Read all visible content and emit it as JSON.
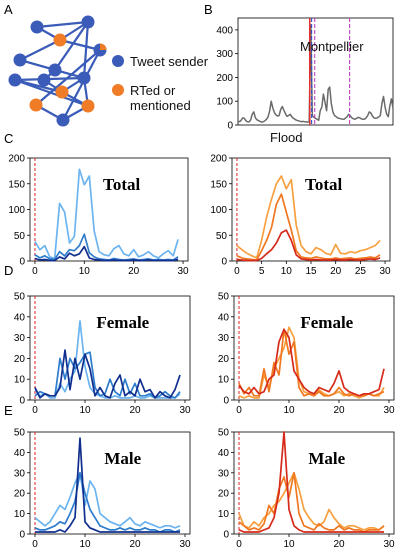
{
  "panel_letters": {
    "a": "A",
    "b": "B",
    "c": "C",
    "d": "D",
    "e": "E"
  },
  "legend": {
    "sender": {
      "label": "Tweet sender",
      "color": "#3a5cb8"
    },
    "rted": {
      "label_line1": "RTed or",
      "label_line2": "mentioned",
      "color": "#f07c28"
    }
  },
  "network": {
    "edge_color": "#3a5cb8",
    "nodes": [
      {
        "id": 1,
        "role": "sender"
      },
      {
        "id": 2,
        "role": "rted"
      },
      {
        "id": 3,
        "role": "sender"
      },
      {
        "id": 4,
        "role": "mixed"
      },
      {
        "id": 5,
        "role": "sender"
      },
      {
        "id": 6,
        "role": "sender"
      },
      {
        "id": 7,
        "role": "sender"
      },
      {
        "id": 8,
        "role": "sender"
      },
      {
        "id": 9,
        "role": "rted"
      },
      {
        "id": 10,
        "role": "sender"
      },
      {
        "id": 11,
        "role": "rted"
      },
      {
        "id": 12,
        "role": "sender"
      },
      {
        "id": 13,
        "role": "rted"
      }
    ],
    "edges": [
      [
        1,
        2
      ],
      [
        1,
        3
      ],
      [
        2,
        3
      ],
      [
        2,
        5
      ],
      [
        2,
        4
      ],
      [
        3,
        8
      ],
      [
        3,
        6
      ],
      [
        5,
        8
      ],
      [
        6,
        8
      ],
      [
        6,
        7
      ],
      [
        7,
        9
      ],
      [
        8,
        9
      ],
      [
        8,
        10
      ],
      [
        8,
        11
      ],
      [
        9,
        10
      ],
      [
        9,
        11
      ],
      [
        4,
        12
      ],
      [
        4,
        13
      ],
      [
        11,
        12
      ],
      [
        12,
        13
      ],
      [
        5,
        6
      ],
      [
        10,
        11
      ]
    ]
  },
  "chart_data": [
    {
      "panel": "B",
      "type": "line",
      "annotations": [
        "Montpellier",
        "Flood"
      ],
      "ylim": [
        0,
        450
      ],
      "yticks": [
        0,
        100,
        200,
        300,
        400
      ],
      "series": [
        {
          "color": "#6a6a6a",
          "values": [
            15,
            14,
            20,
            30,
            28,
            18,
            14,
            13,
            22,
            45,
            55,
            30,
            22,
            18,
            15,
            12,
            14,
            18,
            24,
            35,
            58,
            100,
            72,
            52,
            42,
            38,
            40,
            65,
            78,
            62,
            48,
            36,
            40,
            45,
            35,
            28,
            24,
            20,
            18,
            16,
            14,
            15,
            14,
            13,
            12,
            14,
            420,
            40,
            32,
            28,
            24,
            20,
            60,
            75,
            130,
            95,
            60,
            150,
            160,
            90,
            55,
            40,
            35,
            30,
            28,
            26,
            25,
            24,
            30,
            35,
            45,
            38,
            30,
            26,
            24,
            28,
            32,
            30,
            26,
            24,
            25,
            30,
            40,
            55,
            50,
            38,
            30,
            28,
            30,
            34,
            40,
            90,
            120,
            75,
            45,
            35,
            80,
            110,
            70
          ]
        }
      ],
      "markers": [
        {
          "pos": 0.463,
          "color": "#e03030"
        },
        {
          "pos": 0.475,
          "color": "#2850c8"
        },
        {
          "pos": 0.495,
          "color": "#c040c0"
        },
        {
          "pos": 0.72,
          "color": "#c040c0"
        }
      ]
    },
    {
      "panel": "C-left",
      "type": "line",
      "title": "Total",
      "xlim": [
        -1,
        31
      ],
      "ylim": [
        0,
        200
      ],
      "xticks": [
        0,
        10,
        20,
        30
      ],
      "yticks": [
        0,
        50,
        100,
        150,
        200
      ],
      "vline": 0,
      "x": [
        0,
        1,
        2,
        3,
        4,
        5,
        6,
        7,
        8,
        9,
        10,
        11,
        12,
        13,
        14,
        15,
        16,
        17,
        18,
        19,
        20,
        21,
        22,
        23,
        24,
        25,
        26,
        27,
        28,
        29
      ],
      "series": [
        {
          "color": "#6cb4f0",
          "values": [
            38,
            22,
            30,
            8,
            5,
            112,
            95,
            35,
            48,
            178,
            148,
            165,
            58,
            18,
            12,
            10,
            24,
            30,
            14,
            10,
            22,
            8,
            12,
            18,
            10,
            6,
            14,
            20,
            10,
            42
          ]
        },
        {
          "color": "#2f7dcd",
          "values": [
            12,
            6,
            10,
            4,
            3,
            18,
            10,
            22,
            20,
            30,
            52,
            16,
            8,
            4,
            3,
            2,
            5,
            3,
            2,
            3,
            4,
            2,
            3,
            4,
            2,
            3,
            2,
            3,
            2,
            8
          ]
        },
        {
          "color": "#102f8e",
          "values": [
            5,
            2,
            3,
            1,
            1,
            8,
            4,
            15,
            10,
            14,
            28,
            6,
            3,
            2,
            1,
            1,
            2,
            1,
            1,
            1,
            2,
            1,
            1,
            2,
            1,
            1,
            1,
            1,
            1,
            3
          ]
        }
      ]
    },
    {
      "panel": "C-right",
      "type": "line",
      "title": "Total",
      "xlim": [
        -1,
        31
      ],
      "ylim": [
        0,
        200
      ],
      "xticks": [
        0,
        5,
        10,
        15,
        20,
        25,
        30
      ],
      "yticks": [
        0,
        50,
        100,
        150,
        200
      ],
      "vline": 0,
      "x": [
        0,
        1,
        2,
        3,
        4,
        5,
        6,
        7,
        8,
        9,
        10,
        11,
        12,
        13,
        14,
        15,
        16,
        17,
        18,
        19,
        20,
        21,
        22,
        23,
        24,
        25,
        26,
        27,
        28,
        29
      ],
      "series": [
        {
          "color": "#f7a040",
          "values": [
            30,
            22,
            15,
            10,
            6,
            40,
            85,
            120,
            150,
            165,
            140,
            158,
            70,
            30,
            18,
            14,
            26,
            22,
            15,
            12,
            32,
            15,
            14,
            18,
            16,
            20,
            22,
            26,
            30,
            40
          ]
        },
        {
          "color": "#f07820",
          "values": [
            10,
            6,
            4,
            3,
            2,
            20,
            40,
            65,
            110,
            130,
            95,
            60,
            20,
            8,
            6,
            5,
            8,
            6,
            4,
            4,
            6,
            4,
            5,
            6,
            4,
            5,
            6,
            8,
            6,
            12
          ]
        },
        {
          "color": "#d62a1a",
          "values": [
            3,
            2,
            1,
            1,
            1,
            5,
            14,
            22,
            35,
            55,
            60,
            40,
            12,
            4,
            3,
            2,
            3,
            2,
            2,
            2,
            3,
            2,
            2,
            3,
            2,
            2,
            3,
            4,
            3,
            6
          ]
        }
      ]
    },
    {
      "panel": "D-left",
      "type": "line",
      "title": "Female",
      "xlim": [
        -1,
        31
      ],
      "ylim": [
        0,
        50
      ],
      "xticks": [
        0,
        10,
        20,
        30
      ],
      "yticks": [
        0,
        10,
        20,
        30,
        40,
        50
      ],
      "vline": 0,
      "x": [
        0,
        1,
        2,
        3,
        4,
        5,
        6,
        7,
        8,
        9,
        10,
        11,
        12,
        13,
        14,
        15,
        16,
        17,
        18,
        19,
        20,
        21,
        22,
        23,
        24,
        25,
        26,
        27,
        28,
        29
      ],
      "series": [
        {
          "color": "#6cb4f0",
          "values": [
            5,
            2,
            3,
            1,
            1,
            8,
            4,
            10,
            14,
            38,
            16,
            6,
            3,
            2,
            1,
            1,
            2,
            1,
            1,
            1,
            2,
            1,
            1,
            2,
            1,
            1,
            1,
            1,
            1,
            3
          ]
        },
        {
          "color": "#2f7dcd",
          "values": [
            2,
            4,
            3,
            2,
            2,
            20,
            10,
            20,
            15,
            18,
            22,
            23,
            6,
            2,
            3,
            10,
            4,
            2,
            10,
            3,
            8,
            2,
            2,
            3,
            1,
            2,
            4,
            2,
            1,
            4
          ]
        },
        {
          "color": "#102f8e",
          "values": [
            6,
            1,
            3,
            2,
            2,
            6,
            24,
            5,
            20,
            10,
            22,
            15,
            2,
            6,
            2,
            1,
            8,
            12,
            2,
            4,
            2,
            10,
            4,
            5,
            1,
            4,
            2,
            1,
            5,
            12
          ]
        }
      ]
    },
    {
      "panel": "D-right",
      "type": "line",
      "title": "Female",
      "xlim": [
        -1,
        31
      ],
      "ylim": [
        0,
        50
      ],
      "xticks": [
        0,
        10,
        20,
        30
      ],
      "yticks": [
        0,
        10,
        20,
        30,
        40,
        50
      ],
      "vline": 0,
      "x": [
        0,
        1,
        2,
        3,
        4,
        5,
        6,
        7,
        8,
        9,
        10,
        11,
        12,
        13,
        14,
        15,
        16,
        17,
        18,
        19,
        20,
        21,
        22,
        23,
        24,
        25,
        26,
        27,
        28,
        29
      ],
      "series": [
        {
          "color": "#f7a040",
          "values": [
            2,
            1,
            2,
            1,
            1,
            12,
            6,
            15,
            20,
            25,
            35,
            30,
            10,
            4,
            3,
            2,
            5,
            3,
            2,
            3,
            4,
            2,
            3,
            2,
            1,
            2,
            3,
            2,
            2,
            6
          ]
        },
        {
          "color": "#f07820",
          "values": [
            8,
            3,
            6,
            2,
            2,
            15,
            4,
            18,
            12,
            34,
            22,
            28,
            6,
            2,
            3,
            2,
            4,
            2,
            2,
            3,
            6,
            3,
            2,
            3,
            2,
            2,
            3,
            2,
            3,
            4
          ]
        },
        {
          "color": "#d62a1a",
          "values": [
            7,
            4,
            3,
            6,
            3,
            4,
            10,
            12,
            28,
            34,
            30,
            14,
            10,
            6,
            4,
            3,
            6,
            5,
            4,
            8,
            14,
            6,
            4,
            3,
            2,
            3,
            3,
            4,
            5,
            15
          ]
        }
      ]
    },
    {
      "panel": "E-left",
      "type": "line",
      "title": "Male",
      "xlim": [
        -1,
        31
      ],
      "ylim": [
        0,
        50
      ],
      "xticks": [
        0,
        10,
        20,
        30
      ],
      "yticks": [
        0,
        10,
        20,
        30,
        40,
        50
      ],
      "vline": 0,
      "x": [
        0,
        1,
        2,
        3,
        4,
        5,
        6,
        7,
        8,
        9,
        10,
        11,
        12,
        13,
        14,
        15,
        16,
        17,
        18,
        19,
        20,
        21,
        22,
        23,
        24,
        25,
        26,
        27,
        28,
        29
      ],
      "series": [
        {
          "color": "#6cb4f0",
          "values": [
            8,
            6,
            4,
            6,
            10,
            14,
            12,
            18,
            25,
            30,
            14,
            26,
            22,
            10,
            8,
            6,
            5,
            4,
            6,
            8,
            5,
            4,
            6,
            5,
            4,
            3,
            4,
            4,
            3,
            4
          ]
        },
        {
          "color": "#2f7dcd",
          "values": [
            3,
            2,
            2,
            3,
            4,
            6,
            5,
            10,
            16,
            30,
            20,
            12,
            8,
            4,
            3,
            2,
            2,
            3,
            2,
            3,
            2,
            2,
            3,
            2,
            2,
            1,
            2,
            2,
            1,
            2
          ]
        },
        {
          "color": "#102f8e",
          "values": [
            1,
            1,
            1,
            1,
            1,
            2,
            1,
            4,
            8,
            47,
            6,
            3,
            2,
            1,
            1,
            1,
            1,
            1,
            1,
            1,
            1,
            1,
            1,
            1,
            1,
            1,
            1,
            1,
            1,
            1
          ]
        }
      ]
    },
    {
      "panel": "E-right",
      "type": "line",
      "title": "Male",
      "xlim": [
        -1,
        31
      ],
      "ylim": [
        0,
        50
      ],
      "xticks": [
        0,
        10,
        20,
        30
      ],
      "yticks": [
        0,
        10,
        20,
        30,
        40,
        50
      ],
      "vline": 0,
      "x": [
        0,
        1,
        2,
        3,
        4,
        5,
        6,
        7,
        8,
        9,
        10,
        11,
        12,
        13,
        14,
        15,
        16,
        17,
        18,
        19,
        20,
        21,
        22,
        23,
        24,
        25,
        26,
        27,
        28,
        29
      ],
      "series": [
        {
          "color": "#f7a040",
          "values": [
            10,
            4,
            3,
            6,
            4,
            8,
            10,
            14,
            16,
            20,
            25,
            30,
            22,
            12,
            8,
            5,
            4,
            6,
            12,
            8,
            5,
            3,
            4,
            4,
            3,
            2,
            3,
            3,
            2,
            4
          ]
        },
        {
          "color": "#f07820",
          "values": [
            6,
            4,
            2,
            3,
            2,
            5,
            14,
            10,
            22,
            28,
            18,
            30,
            10,
            4,
            3,
            2,
            5,
            3,
            2,
            2,
            4,
            2,
            3,
            2,
            2,
            1,
            2,
            2,
            2,
            4
          ]
        },
        {
          "color": "#d62a1a",
          "values": [
            2,
            1,
            1,
            1,
            1,
            2,
            3,
            8,
            20,
            50,
            12,
            4,
            2,
            1,
            1,
            1,
            1,
            1,
            1,
            1,
            1,
            1,
            1,
            1,
            1,
            1,
            1,
            1,
            1,
            1
          ]
        }
      ]
    }
  ]
}
